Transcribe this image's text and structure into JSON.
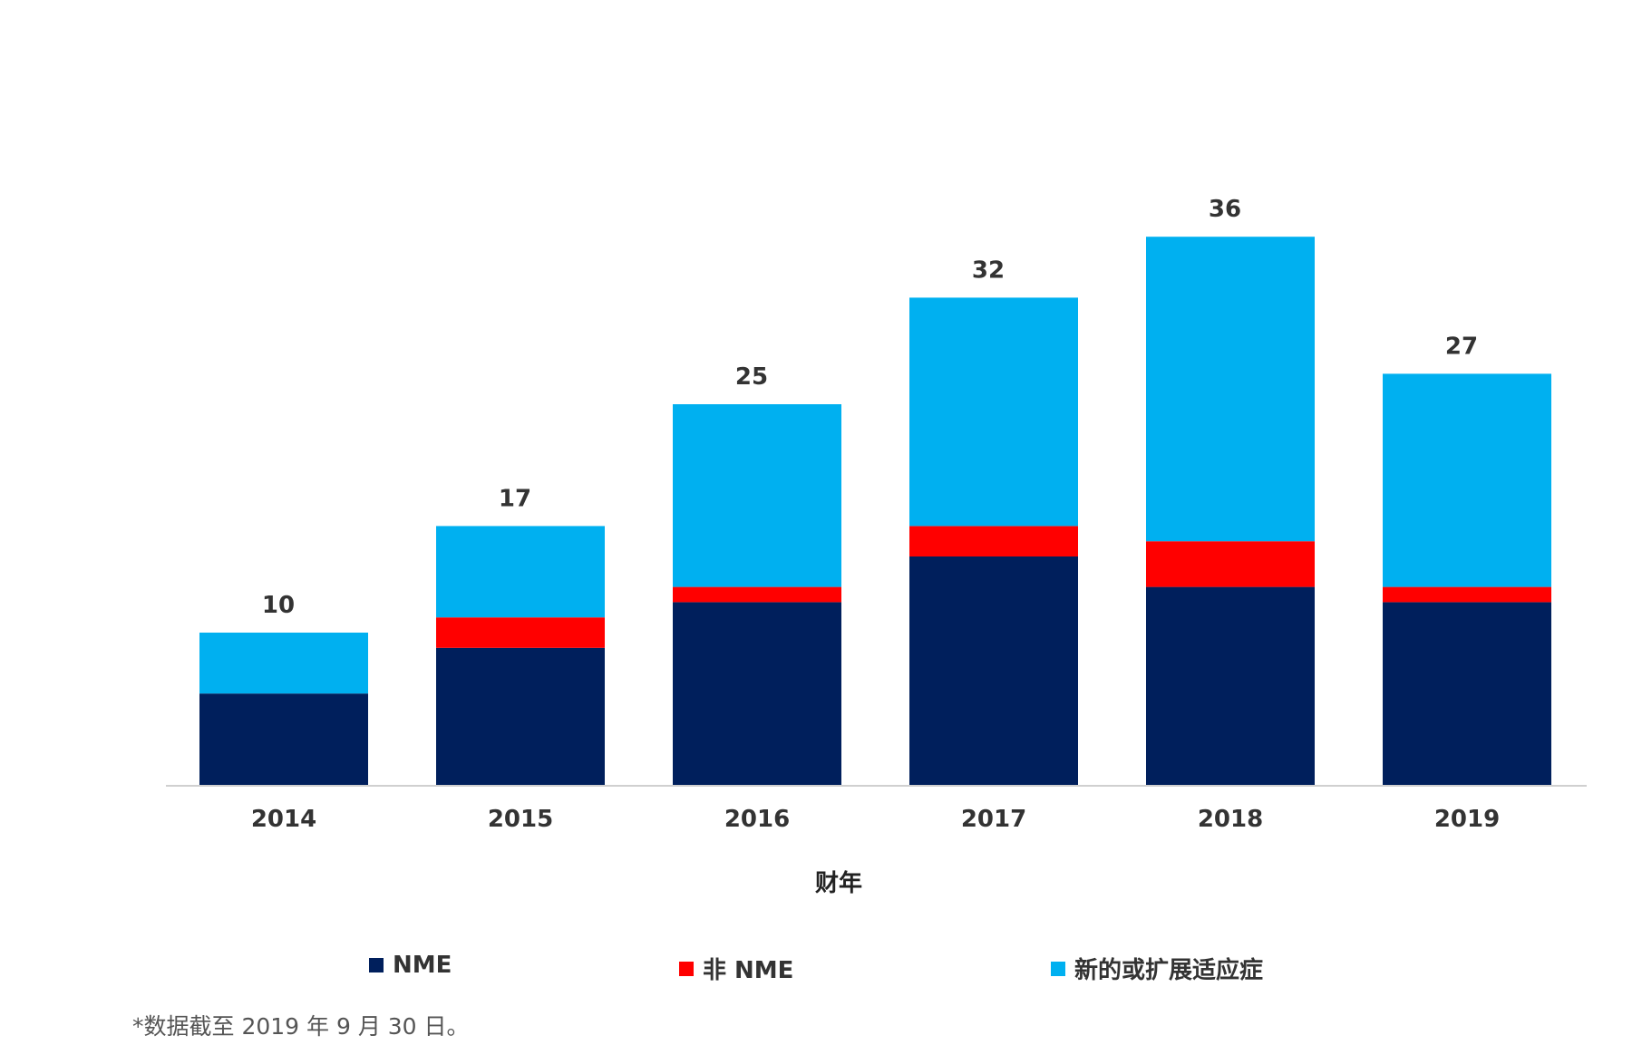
{
  "chart_data": {
    "type": "bar",
    "stacked": true,
    "title": "",
    "xlabel": "财年",
    "ylabel": "",
    "ylim": [
      0,
      40
    ],
    "grid": false,
    "legend_position": "bottom",
    "categories": [
      "2014",
      "2015",
      "2016",
      "2017",
      "2018",
      "2019"
    ],
    "series": [
      {
        "name": "NME",
        "color": "#001f5c",
        "values": [
          6,
          9,
          12,
          15,
          13,
          12
        ]
      },
      {
        "name": "非 NME",
        "color": "#ff0000",
        "values": [
          0,
          2,
          1,
          2,
          3,
          1
        ]
      },
      {
        "name": "新的或扩展适应症",
        "color": "#00b0f0",
        "values": [
          4,
          6,
          12,
          15,
          20,
          14
        ]
      }
    ],
    "totals": [
      10,
      17,
      25,
      32,
      36,
      27
    ]
  },
  "footnote": "*数据截至 2019 年 9 月 30 日。"
}
